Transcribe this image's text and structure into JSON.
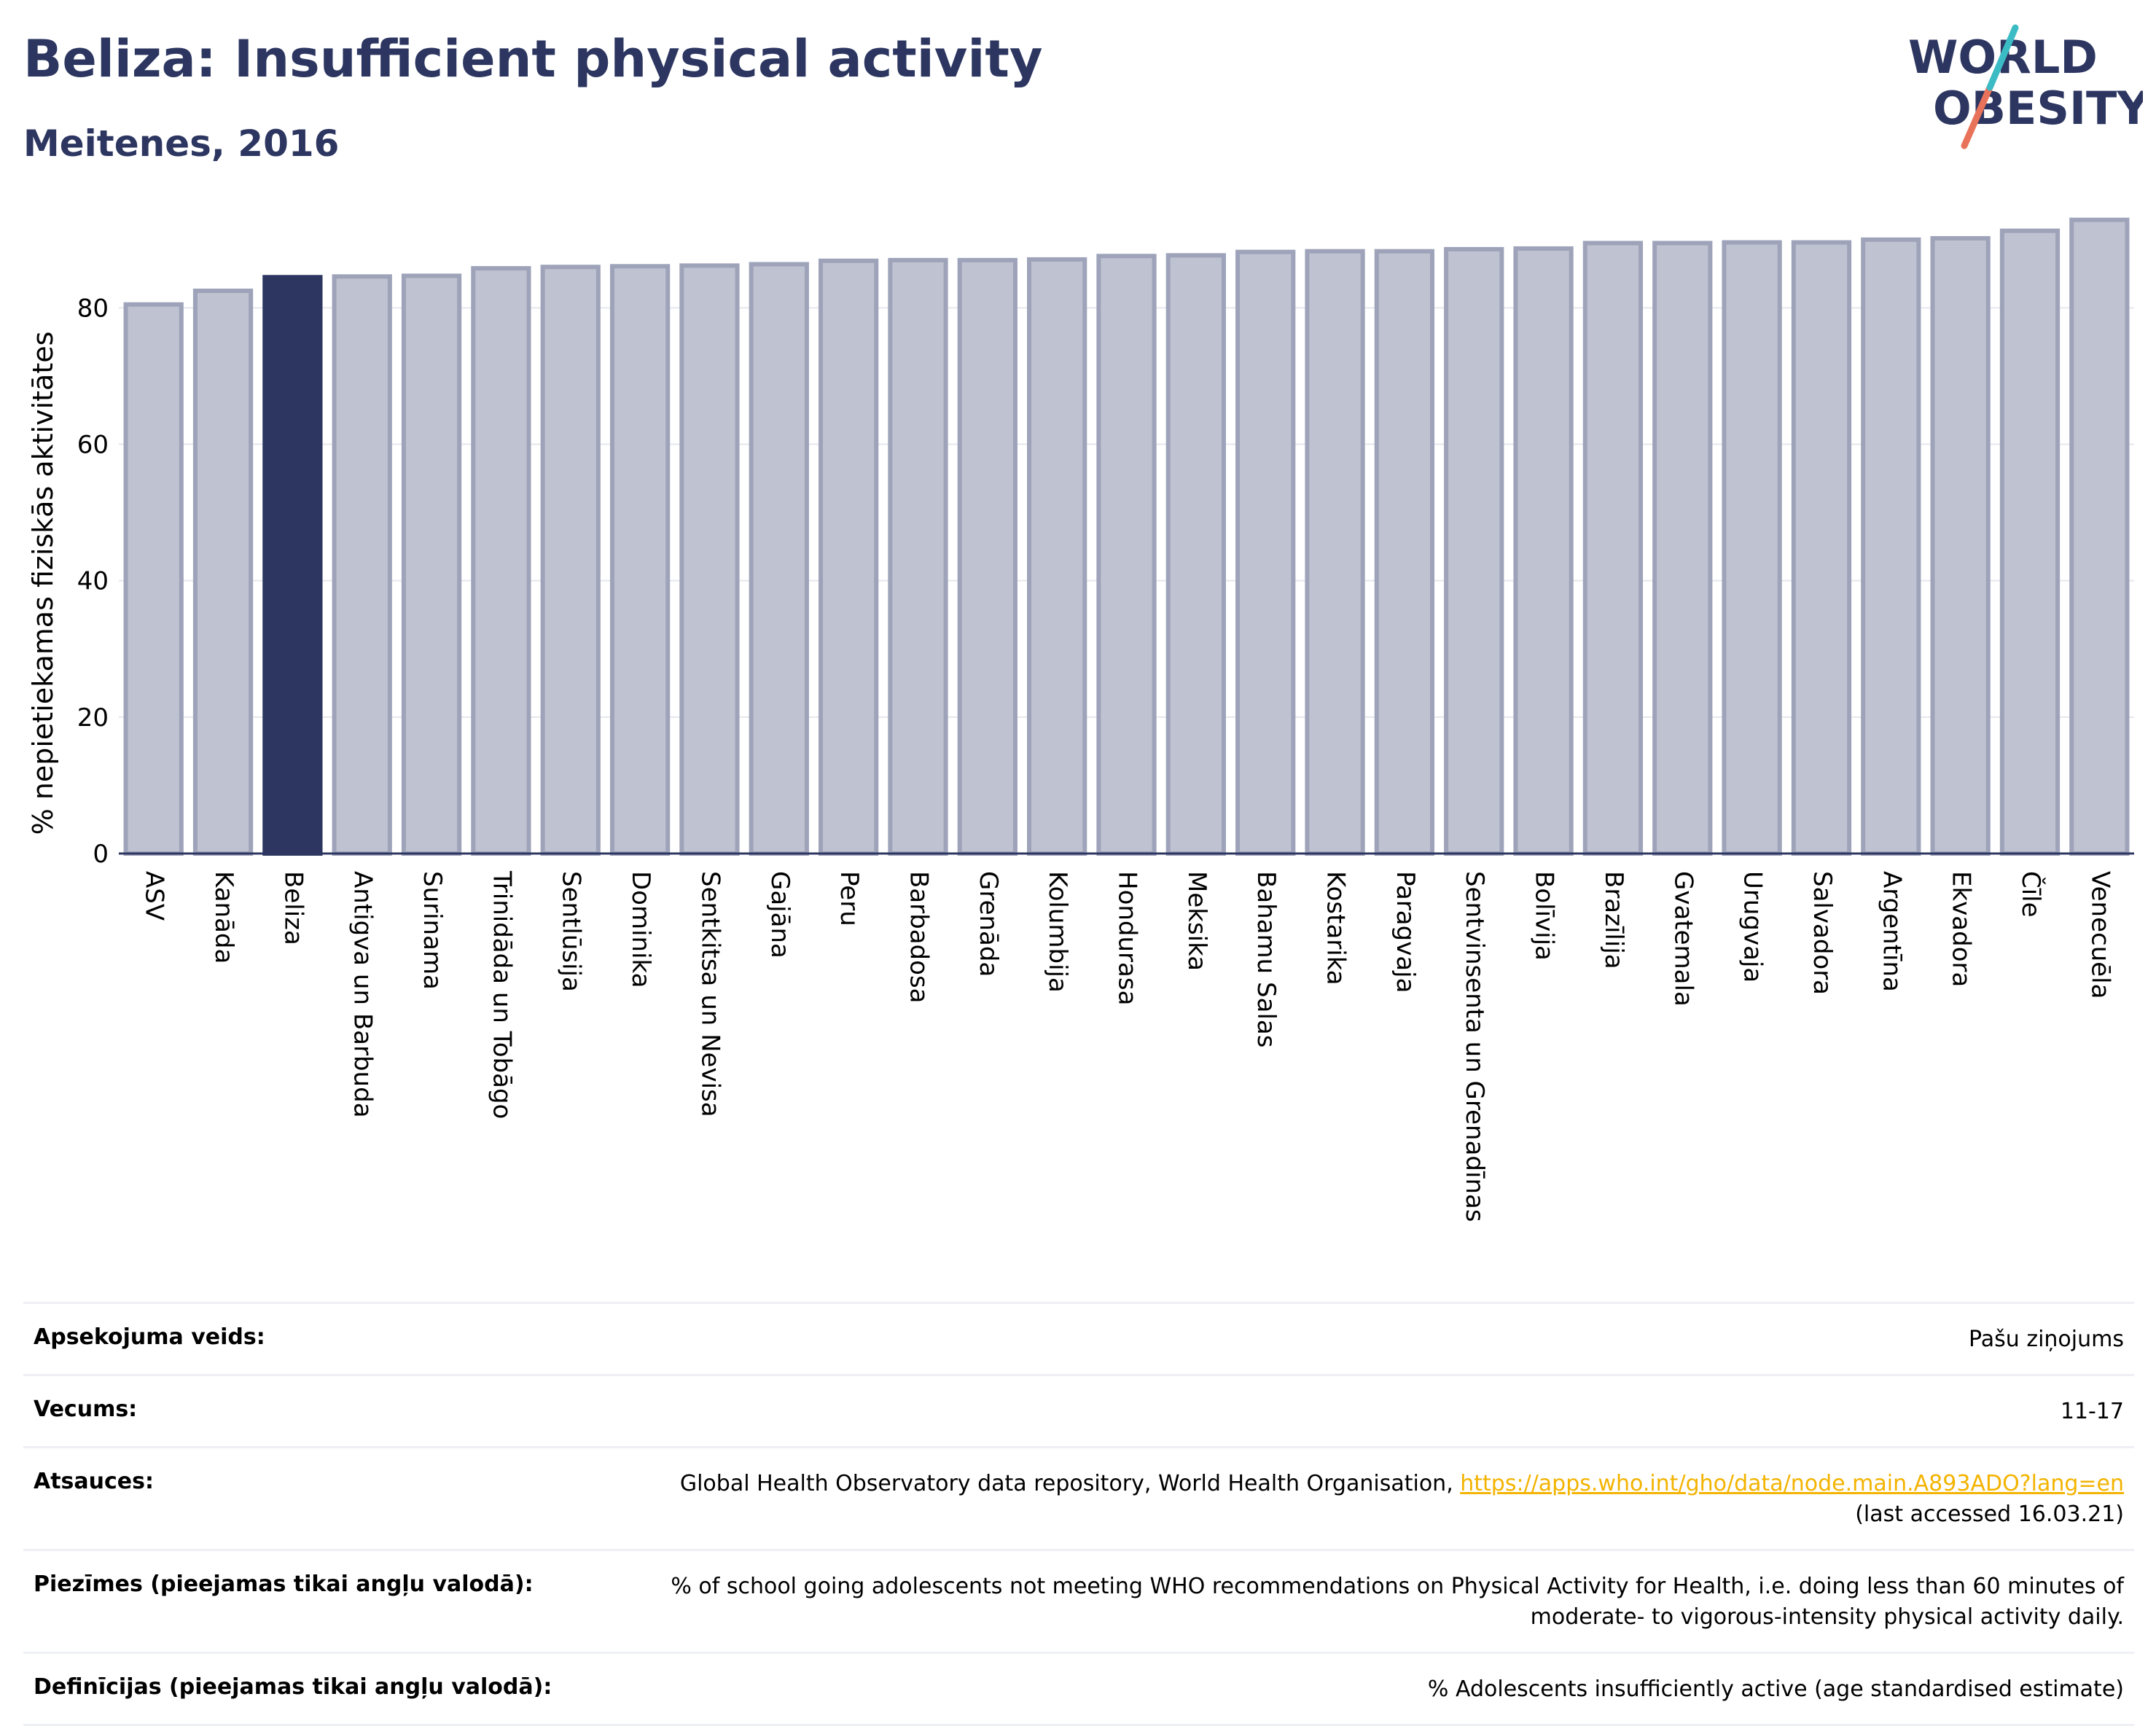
{
  "header": {
    "title": "Beliza: Insufficient physical activity",
    "subtitle": "Meitenes, 2016"
  },
  "logo": {
    "line1": "WORLD",
    "line2": "OBESITY"
  },
  "colors": {
    "highlight": "#2c3660",
    "bar": "#bfc2d0",
    "bar_border": "#9ea3ba",
    "text_dark": "#2c3660",
    "link": "#f3b300"
  },
  "chart_data": {
    "type": "bar",
    "ylabel": "% nepietiekamas fiziskās aktivitātes",
    "ylim": [
      0,
      95
    ],
    "yticks": [
      0,
      20,
      40,
      60,
      80
    ],
    "grid": true,
    "highlight": "Beliza",
    "categories": [
      "ASV",
      "Kanāda",
      "Beliza",
      "Antigva un Barbuda",
      "Surinama",
      "Trinidāda un Tobāgo",
      "Sentlūsija",
      "Dominika",
      "Sentkitsa un Nevisa",
      "Gajāna",
      "Peru",
      "Barbadosa",
      "Grenāda",
      "Kolumbija",
      "Hondurasa",
      "Meksika",
      "Bahamu Salas",
      "Kostarika",
      "Paragvaja",
      "Sentvinsenta un Grenadīnas",
      "Bolīvija",
      "Brazīlija",
      "Gvatemala",
      "Urugvaja",
      "Salvadora",
      "Argentīna",
      "Ekvadora",
      "Čīle",
      "Venecuēla"
    ],
    "values": [
      80.5,
      82.5,
      84.5,
      84.6,
      84.7,
      85.8,
      86.0,
      86.1,
      86.2,
      86.4,
      86.9,
      87.0,
      87.0,
      87.1,
      87.6,
      87.7,
      88.2,
      88.3,
      88.3,
      88.6,
      88.7,
      89.5,
      89.5,
      89.6,
      89.6,
      90.0,
      90.2,
      91.3,
      92.9
    ]
  },
  "info_table": [
    {
      "label": "Apsekojuma veids:",
      "value": "Pašu ziņojums"
    },
    {
      "label": "Vecums:",
      "value": "11-17"
    },
    {
      "label": "Atsauces:",
      "value": "Global Health Observatory data repository, World Health Organisation, ",
      "link": "https://apps.who.int/gho/data/node.main.A893ADO?lang=en",
      "value2": "(last accessed 16.03.21)"
    },
    {
      "label": "Piezīmes (pieejamas tikai angļu valodā):",
      "value": "% of school going adolescents not meeting WHO recommendations on Physical Activity for Health, i.e. doing less than 60 minutes of",
      "value2": "moderate- to vigorous-intensity physical activity daily."
    },
    {
      "label": "Definīcijas (pieejamas tikai angļu valodā):",
      "value": "% Adolescents insufficiently active (age standardised estimate)"
    }
  ]
}
